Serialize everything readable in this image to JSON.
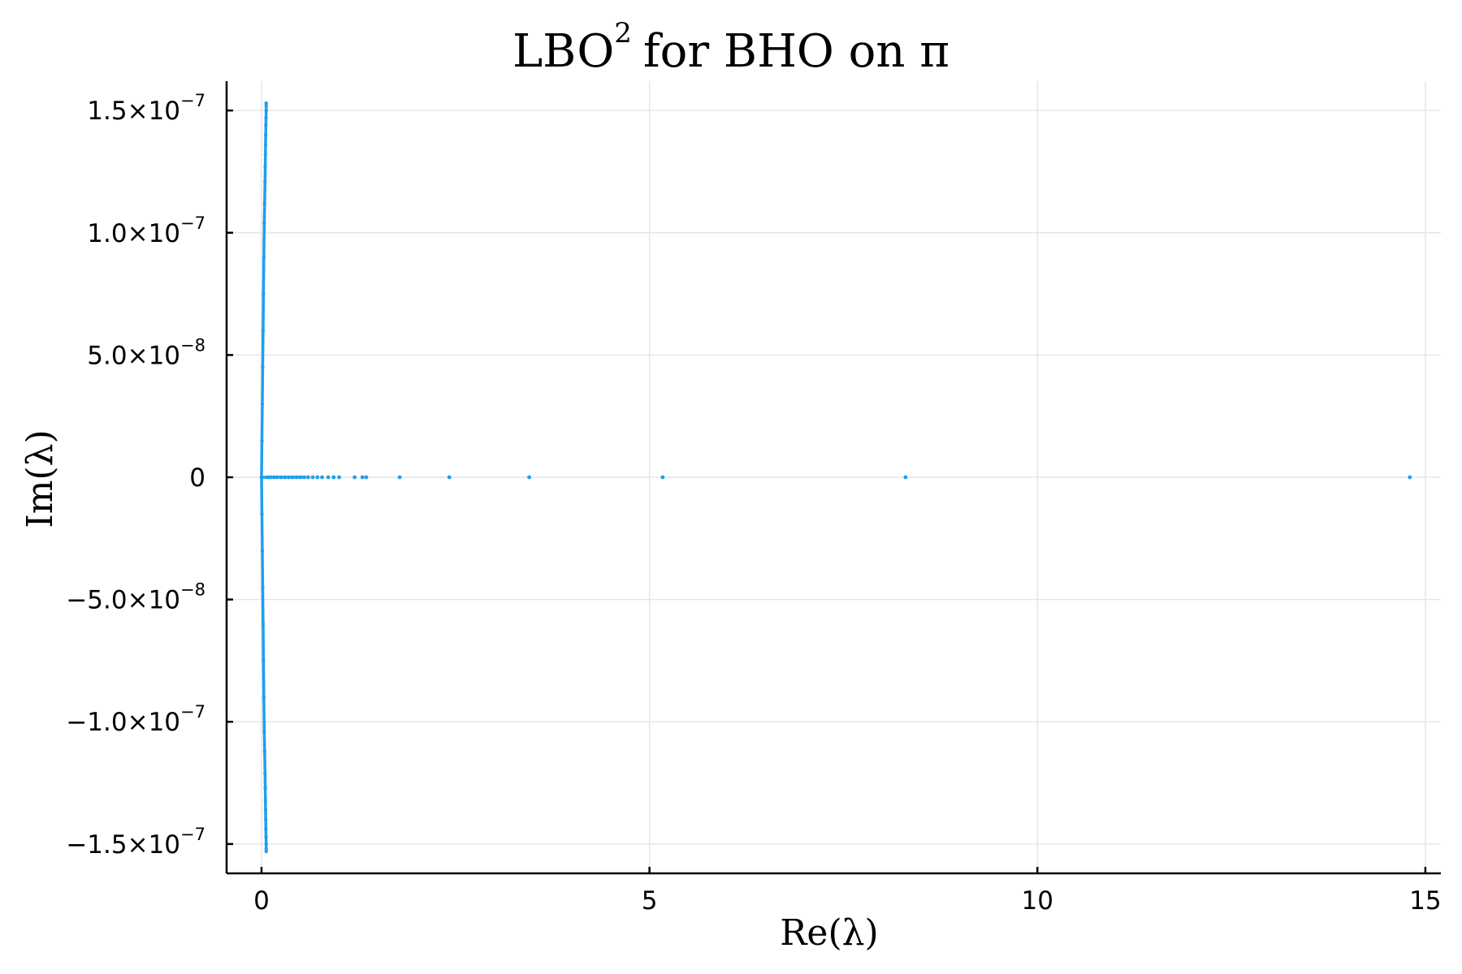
{
  "chart_data": {
    "type": "scatter",
    "title": "LBO",
    "title_superscript": "2",
    "title_suffix": "for BHO on π",
    "xlabel": "Re(λ)",
    "ylabel": "Im(λ)",
    "xlim": [
      -0.45,
      15.2
    ],
    "ylim": [
      -1.62e-07,
      1.62e-07
    ],
    "grid": true,
    "legend": "none",
    "series_color": "#1f9ef0",
    "x_ticks": [
      {
        "value": 0,
        "label": "0"
      },
      {
        "value": 5,
        "label": "5"
      },
      {
        "value": 10,
        "label": "10"
      },
      {
        "value": 15,
        "label": "15"
      }
    ],
    "y_ticks": [
      {
        "value": 1.5e-07,
        "mantissa": "1.5×10",
        "exp": "−7"
      },
      {
        "value": 1e-07,
        "mantissa": "1.0×10",
        "exp": "−7"
      },
      {
        "value": 5e-08,
        "mantissa": "5.0×10",
        "exp": "−8"
      },
      {
        "value": 0,
        "mantissa": "0",
        "exp": ""
      },
      {
        "value": -5e-08,
        "mantissa": "−5.0×10",
        "exp": "−8"
      },
      {
        "value": -1e-07,
        "mantissa": "−1.0×10",
        "exp": "−7"
      },
      {
        "value": -1.5e-07,
        "mantissa": "−1.5×10",
        "exp": "−7"
      }
    ],
    "points_upper_branch": [
      [
        0.0,
        0.0
      ],
      [
        0.005,
        1.5e-08
      ],
      [
        0.01,
        3e-08
      ],
      [
        0.015,
        4.5e-08
      ],
      [
        0.02,
        6e-08
      ],
      [
        0.025,
        7.5e-08
      ],
      [
        0.03,
        9e-08
      ],
      [
        0.035,
        1.04e-07
      ],
      [
        0.04,
        1.12e-07
      ],
      [
        0.045,
        1.21e-07
      ],
      [
        0.048,
        1.27e-07
      ],
      [
        0.05,
        1.32e-07
      ],
      [
        0.052,
        1.36e-07
      ],
      [
        0.054,
        1.4e-07
      ],
      [
        0.056,
        1.44e-07
      ],
      [
        0.058,
        1.47e-07
      ],
      [
        0.06,
        1.5e-07
      ],
      [
        0.06,
        1.52e-07
      ],
      [
        0.06,
        1.53e-07
      ]
    ],
    "points_lower_branch": [
      [
        0.0,
        0.0
      ],
      [
        0.005,
        -1.5e-08
      ],
      [
        0.01,
        -3e-08
      ],
      [
        0.015,
        -4.5e-08
      ],
      [
        0.02,
        -6e-08
      ],
      [
        0.025,
        -7.5e-08
      ],
      [
        0.03,
        -9e-08
      ],
      [
        0.035,
        -1.04e-07
      ],
      [
        0.04,
        -1.12e-07
      ],
      [
        0.045,
        -1.21e-07
      ],
      [
        0.048,
        -1.27e-07
      ],
      [
        0.05,
        -1.32e-07
      ],
      [
        0.052,
        -1.36e-07
      ],
      [
        0.054,
        -1.4e-07
      ],
      [
        0.056,
        -1.44e-07
      ],
      [
        0.058,
        -1.47e-07
      ],
      [
        0.06,
        -1.5e-07
      ],
      [
        0.06,
        -1.52e-07
      ],
      [
        0.06,
        -1.53e-07
      ]
    ],
    "points_real_axis": [
      [
        0.08,
        0
      ],
      [
        0.12,
        0
      ],
      [
        0.16,
        0
      ],
      [
        0.2,
        0
      ],
      [
        0.25,
        0
      ],
      [
        0.3,
        0
      ],
      [
        0.35,
        0
      ],
      [
        0.4,
        0
      ],
      [
        0.45,
        0
      ],
      [
        0.5,
        0
      ],
      [
        0.55,
        0
      ],
      [
        0.6,
        0
      ],
      [
        0.66,
        0
      ],
      [
        0.72,
        0
      ],
      [
        0.78,
        0
      ],
      [
        0.86,
        0
      ],
      [
        0.93,
        0
      ],
      [
        1.0,
        0
      ],
      [
        1.2,
        0
      ],
      [
        1.3,
        0
      ],
      [
        1.35,
        0
      ],
      [
        1.78,
        0
      ],
      [
        2.42,
        0
      ],
      [
        3.45,
        0
      ],
      [
        5.17,
        0
      ],
      [
        8.3,
        0
      ],
      [
        14.8,
        0
      ]
    ]
  }
}
